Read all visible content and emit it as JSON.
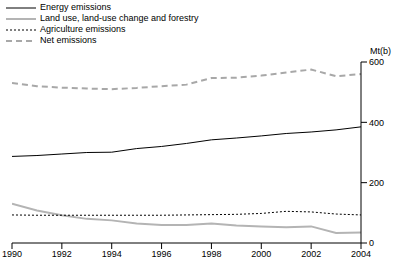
{
  "chart_data": {
    "type": "line",
    "y_label": "Mt(b)",
    "x": [
      1990,
      1991,
      1992,
      1993,
      1994,
      1995,
      1996,
      1997,
      1998,
      1999,
      2000,
      2001,
      2002,
      2003,
      2004
    ],
    "series": [
      {
        "name": "Energy emissions",
        "color": "#000000",
        "line_style": "solid",
        "values": [
          287,
          290,
          295,
          300,
          301,
          313,
          320,
          330,
          342,
          348,
          355,
          363,
          368,
          375,
          385
        ]
      },
      {
        "name": "Land use, land-use change and forestry",
        "color": "#b4b4b4",
        "line_style": "solid",
        "values": [
          130,
          108,
          92,
          80,
          75,
          65,
          60,
          60,
          65,
          58,
          55,
          52,
          55,
          33,
          35
        ]
      },
      {
        "name": "Agriculture emissions",
        "color": "#000000",
        "line_style": "dotted",
        "values": [
          93,
          92,
          92,
          92,
          92,
          92,
          92,
          93,
          94,
          95,
          98,
          105,
          103,
          96,
          93
        ]
      },
      {
        "name": "Net emissions",
        "color": "#a8a8a8",
        "line_style": "dashed",
        "values": [
          530,
          520,
          515,
          512,
          510,
          514,
          520,
          525,
          547,
          548,
          555,
          565,
          575,
          553,
          560
        ]
      }
    ],
    "xlim": [
      1990,
      2004
    ],
    "xticks": [
      1990,
      1992,
      1994,
      1996,
      1998,
      2000,
      2002,
      2004
    ],
    "ylim": [
      0,
      600
    ],
    "yticks": [
      0,
      200,
      400,
      600
    ],
    "grid": false,
    "legend": "top-left"
  }
}
